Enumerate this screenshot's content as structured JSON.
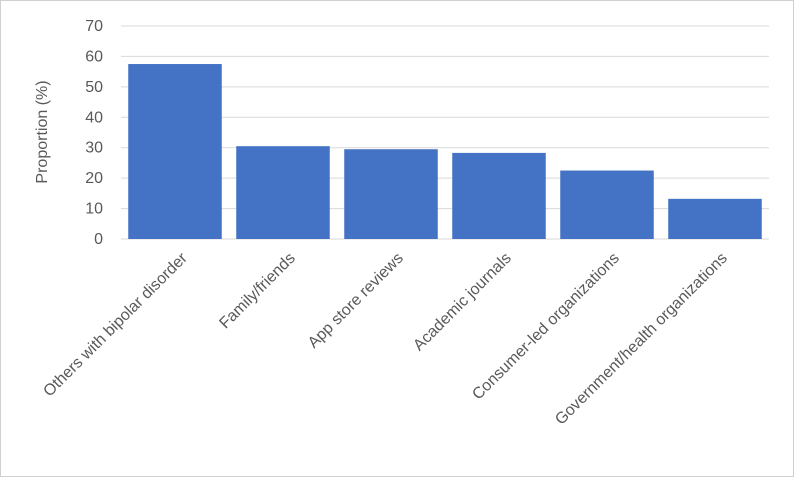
{
  "chart_data": {
    "type": "bar",
    "title": "",
    "xlabel": "",
    "ylabel": "Proportion (%)",
    "ylim": [
      0,
      70
    ],
    "yticks": [
      0,
      10,
      20,
      30,
      40,
      50,
      60,
      70
    ],
    "grid": true,
    "legend": "none",
    "bar_color": "#4472C4",
    "grid_color": "#d9d9d9",
    "categories": [
      "Others with bipolar disorder",
      "Family/friends",
      "App store reviews",
      "Academic journals",
      "Consumer-led organizations",
      "Government/health organizations"
    ],
    "values": [
      57.5,
      30.5,
      29.5,
      28.3,
      22.5,
      13.2
    ]
  }
}
